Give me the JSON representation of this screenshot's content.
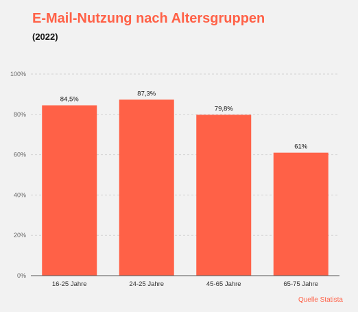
{
  "header": {
    "title": "E-Mail-Nutzung nach Altersgruppen",
    "subtitle": "(2022)"
  },
  "footer": {
    "source": "Quelle Statista"
  },
  "colors": {
    "bar": "#ff6147",
    "accent": "#ff6147",
    "background": "#f2f2f2"
  },
  "chart_data": {
    "type": "bar",
    "title": "E-Mail-Nutzung nach Altersgruppen",
    "subtitle": "(2022)",
    "categories": [
      "16-25 Jahre",
      "24-25 Jahre",
      "45-65 Jahre",
      "65-75 Jahre"
    ],
    "values": [
      84.5,
      87.3,
      79.8,
      61
    ],
    "value_labels": [
      "84,5%",
      "87,3%",
      "79,8%",
      "61%"
    ],
    "xlabel": "",
    "ylabel": "",
    "ylim": [
      0,
      100
    ],
    "yticks": [
      0,
      20,
      40,
      60,
      80,
      100
    ],
    "ytick_labels": [
      "0%",
      "20%",
      "40%",
      "60%",
      "80%",
      "100%"
    ],
    "grid": true,
    "legend": "none"
  }
}
